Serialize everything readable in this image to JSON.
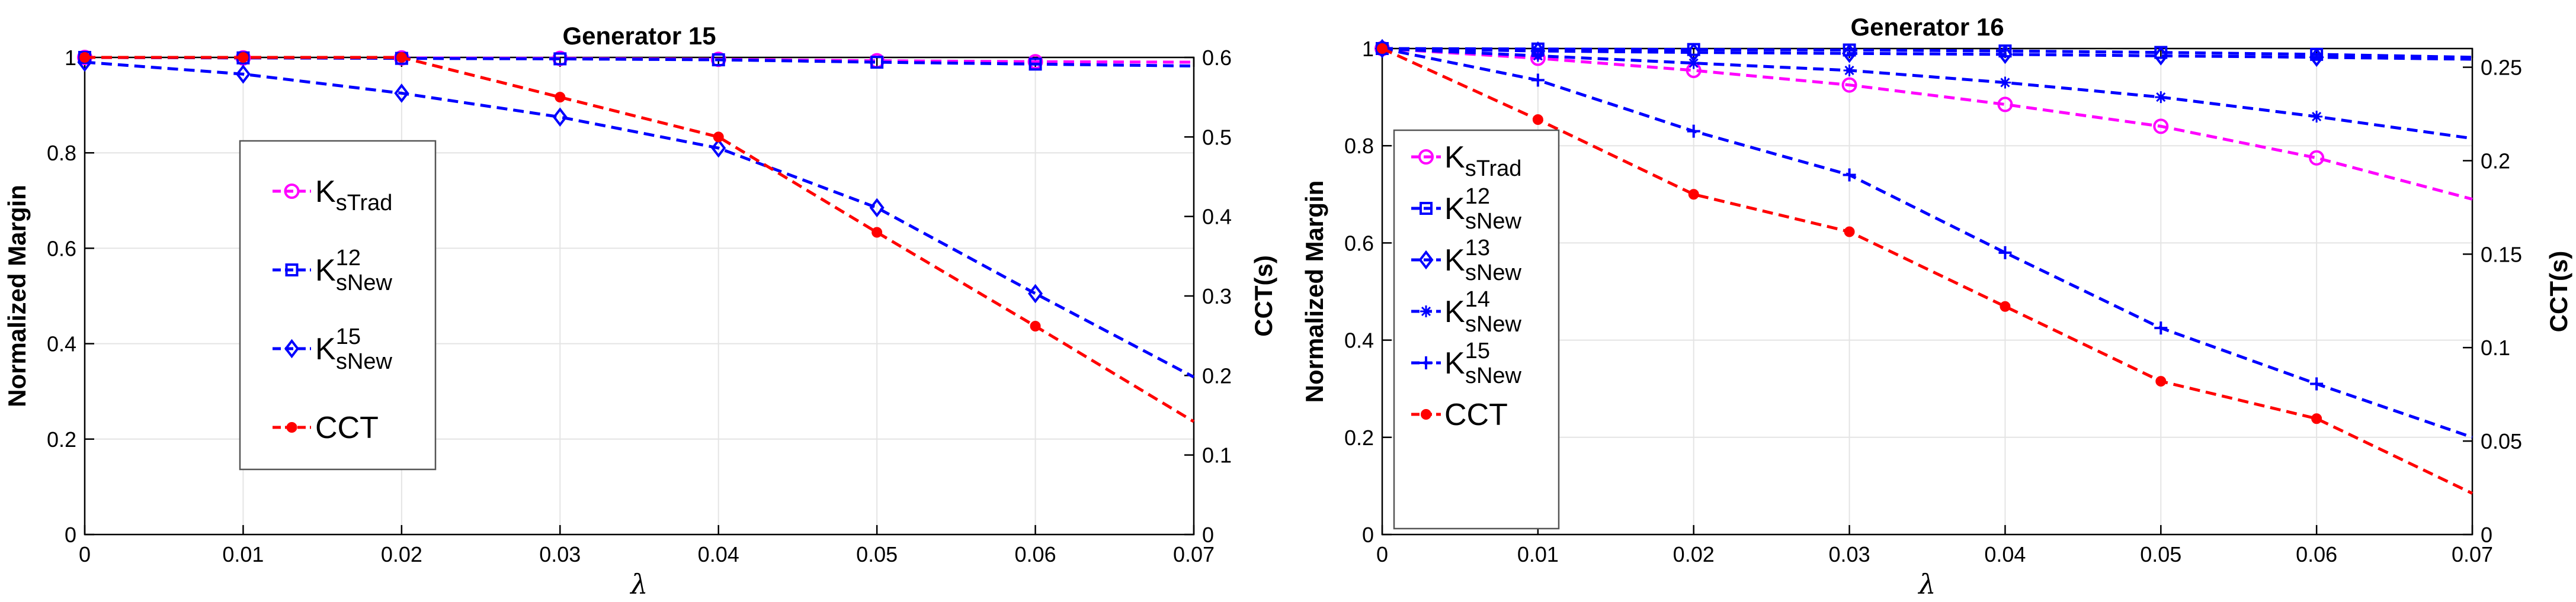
{
  "chart_data": [
    {
      "type": "line",
      "title": "Generator 15",
      "xlabel": "λ",
      "ylabel": "Normalized Margin",
      "y2label": "CCT(s)",
      "x": [
        0,
        0.01,
        0.02,
        0.03,
        0.04,
        0.05,
        0.06,
        0.07
      ],
      "xticks": [
        "0",
        "0.01",
        "0.02",
        "0.03",
        "0.04",
        "0.05",
        "0.06",
        "0.07"
      ],
      "xlim": [
        0,
        0.07
      ],
      "ylim": [
        0,
        1
      ],
      "yticks": [
        "0",
        "0.2",
        "0.4",
        "0.6",
        "0.8",
        "1"
      ],
      "y2lim": [
        0,
        0.6
      ],
      "y2ticks": [
        "0",
        "0.1",
        "0.2",
        "0.3",
        "0.4",
        "0.5",
        "0.6"
      ],
      "grid": true,
      "legend_position": "left",
      "series": [
        {
          "name": "KsTrad",
          "base": "K",
          "sub": "sTrad",
          "sup": "",
          "axis": "left",
          "color": "#ff00ff",
          "marker": "circle",
          "values": [
            1.0,
            0.999,
            0.999,
            0.998,
            0.996,
            0.993,
            0.991,
            0.99
          ]
        },
        {
          "name": "KsNew12",
          "base": "K",
          "sub": "sNew",
          "sup": "12",
          "axis": "left",
          "color": "#0000ff",
          "marker": "square",
          "values": [
            1.0,
            0.999,
            0.998,
            0.997,
            0.995,
            0.99,
            0.986,
            0.982
          ]
        },
        {
          "name": "KsNew15",
          "base": "K",
          "sub": "sNew",
          "sup": "15",
          "axis": "left",
          "color": "#0000ff",
          "marker": "diamond",
          "values": [
            0.99,
            0.965,
            0.925,
            0.875,
            0.81,
            0.685,
            0.505,
            0.33
          ]
        },
        {
          "name": "CCT",
          "base": "CCT",
          "sub": "",
          "sup": "",
          "axis": "right",
          "color": "#ff0000",
          "marker": "dot",
          "values": [
            0.6,
            0.6,
            0.6,
            0.55,
            0.5,
            0.38,
            0.262,
            0.142
          ]
        }
      ]
    },
    {
      "type": "line",
      "title": "Generator 16",
      "xlabel": "λ",
      "ylabel": "Normalized Margin",
      "y2label": "CCT(s)",
      "x": [
        0,
        0.01,
        0.02,
        0.03,
        0.04,
        0.05,
        0.06,
        0.07
      ],
      "xticks": [
        "0",
        "0.01",
        "0.02",
        "0.03",
        "0.04",
        "0.05",
        "0.06",
        "0.07"
      ],
      "xlim": [
        0,
        0.07
      ],
      "ylim": [
        0,
        1
      ],
      "yticks": [
        "0",
        "0.2",
        "0.4",
        "0.6",
        "0.8",
        "1"
      ],
      "y2lim": [
        0,
        0.26
      ],
      "y2ticks": [
        "0",
        "0.05",
        "0.1",
        "0.15",
        "0.2",
        "0.25"
      ],
      "grid": true,
      "legend_position": "left",
      "series": [
        {
          "name": "KsTrad",
          "base": "K",
          "sub": "sTrad",
          "sup": "",
          "axis": "left",
          "color": "#ff00ff",
          "marker": "circle",
          "values": [
            1.0,
            0.98,
            0.955,
            0.925,
            0.885,
            0.84,
            0.775,
            0.69
          ]
        },
        {
          "name": "KsNew12",
          "base": "K",
          "sub": "sNew",
          "sup": "12",
          "axis": "left",
          "color": "#0000ff",
          "marker": "square",
          "values": [
            1.0,
            0.999,
            0.998,
            0.997,
            0.995,
            0.992,
            0.988,
            0.982
          ]
        },
        {
          "name": "KsNew13",
          "base": "K",
          "sub": "sNew",
          "sup": "13",
          "axis": "left",
          "color": "#0000ff",
          "marker": "diamond",
          "values": [
            1.0,
            0.995,
            0.992,
            0.99,
            0.988,
            0.985,
            0.982,
            0.978
          ]
        },
        {
          "name": "KsNew14",
          "base": "K",
          "sub": "sNew",
          "sup": "14",
          "axis": "left",
          "color": "#0000ff",
          "marker": "star",
          "values": [
            1.0,
            0.985,
            0.97,
            0.955,
            0.93,
            0.9,
            0.86,
            0.815
          ]
        },
        {
          "name": "KsNew15",
          "base": "K",
          "sub": "sNew",
          "sup": "15",
          "axis": "left",
          "color": "#0000ff",
          "marker": "plus",
          "values": [
            1.0,
            0.935,
            0.83,
            0.74,
            0.58,
            0.425,
            0.31,
            0.2
          ]
        },
        {
          "name": "CCT",
          "base": "CCT",
          "sub": "",
          "sup": "",
          "axis": "right",
          "color": "#ff0000",
          "marker": "dot",
          "values": [
            0.26,
            0.222,
            0.182,
            0.162,
            0.122,
            0.082,
            0.062,
            0.022
          ]
        }
      ]
    }
  ]
}
